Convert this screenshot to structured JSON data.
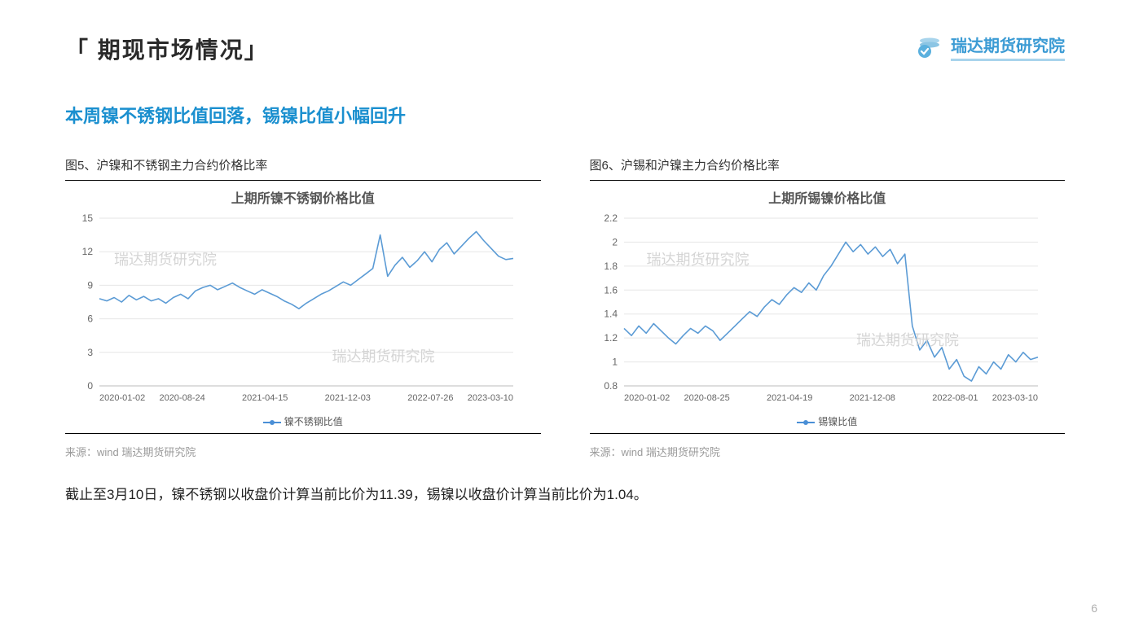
{
  "header": {
    "section_title": "「 期现市场情况」",
    "logo_text": "瑞达期货研究院"
  },
  "subtitle": "本周镍不锈钢比值回落，锡镍比值小幅回升",
  "chart_left": {
    "caption": "图5、沪镍和不锈钢主力合约价格比率",
    "title": "上期所镍不锈钢价格比值",
    "legend": "镍不锈钢比值",
    "watermark1": "瑞达期货研究院",
    "watermark2": "瑞达期货研究院",
    "source": "来源：wind   瑞达期货研究院",
    "type": "line",
    "line_color": "#5b9bd5",
    "grid_color": "#e6e6e6",
    "background_color": "#ffffff",
    "axis_color": "#888888",
    "text_color": "#666666",
    "line_width": 1.6,
    "ylim": [
      0,
      15
    ],
    "yticks": [
      0,
      3,
      6,
      9,
      12,
      15
    ],
    "xticks": [
      "2020-01-02",
      "2020-08-24",
      "2021-04-15",
      "2021-12-03",
      "2022-07-26",
      "2023-03-10"
    ],
    "values": [
      7.8,
      7.6,
      7.9,
      7.5,
      8.1,
      7.7,
      8.0,
      7.6,
      7.8,
      7.4,
      7.9,
      8.2,
      7.8,
      8.5,
      8.8,
      9.0,
      8.6,
      8.9,
      9.2,
      8.8,
      8.5,
      8.2,
      8.6,
      8.3,
      8.0,
      7.6,
      7.3,
      6.9,
      7.4,
      7.8,
      8.2,
      8.5,
      8.9,
      9.3,
      9.0,
      9.5,
      10.0,
      10.5,
      13.5,
      9.8,
      10.8,
      11.5,
      10.6,
      11.2,
      12.0,
      11.1,
      12.2,
      12.8,
      11.8,
      12.5,
      13.2,
      13.8,
      13.0,
      12.3,
      11.6,
      11.3,
      11.4
    ]
  },
  "chart_right": {
    "caption": "图6、沪锡和沪镍主力合约价格比率",
    "title": "上期所锡镍价格比值",
    "legend": "锡镍比值",
    "watermark1": "瑞达期货研究院",
    "watermark2": "瑞达期货研究院",
    "source": "来源：wind   瑞达期货研究院",
    "type": "line",
    "line_color": "#5b9bd5",
    "grid_color": "#e6e6e6",
    "background_color": "#ffffff",
    "axis_color": "#888888",
    "text_color": "#666666",
    "line_width": 1.6,
    "ylim": [
      0.8,
      2.2
    ],
    "yticks": [
      0.8,
      1.0,
      1.2,
      1.4,
      1.6,
      1.8,
      2.0,
      2.2
    ],
    "xticks": [
      "2020-01-02",
      "2020-08-25",
      "2021-04-19",
      "2021-12-08",
      "2022-08-01",
      "2023-03-10"
    ],
    "values": [
      1.28,
      1.22,
      1.3,
      1.24,
      1.32,
      1.26,
      1.2,
      1.15,
      1.22,
      1.28,
      1.24,
      1.3,
      1.26,
      1.18,
      1.24,
      1.3,
      1.36,
      1.42,
      1.38,
      1.46,
      1.52,
      1.48,
      1.56,
      1.62,
      1.58,
      1.66,
      1.6,
      1.72,
      1.8,
      1.9,
      2.0,
      1.92,
      1.98,
      1.9,
      1.96,
      1.88,
      1.94,
      1.82,
      1.9,
      1.3,
      1.1,
      1.18,
      1.04,
      1.12,
      0.94,
      1.02,
      0.88,
      0.84,
      0.96,
      0.9,
      1.0,
      0.94,
      1.06,
      1.0,
      1.08,
      1.02,
      1.04
    ]
  },
  "body_text": "截止至3月10日，镍不锈钢以收盘价计算当前比价为11.39，锡镍以收盘价计算当前比价为1.04。",
  "page_number": "6"
}
